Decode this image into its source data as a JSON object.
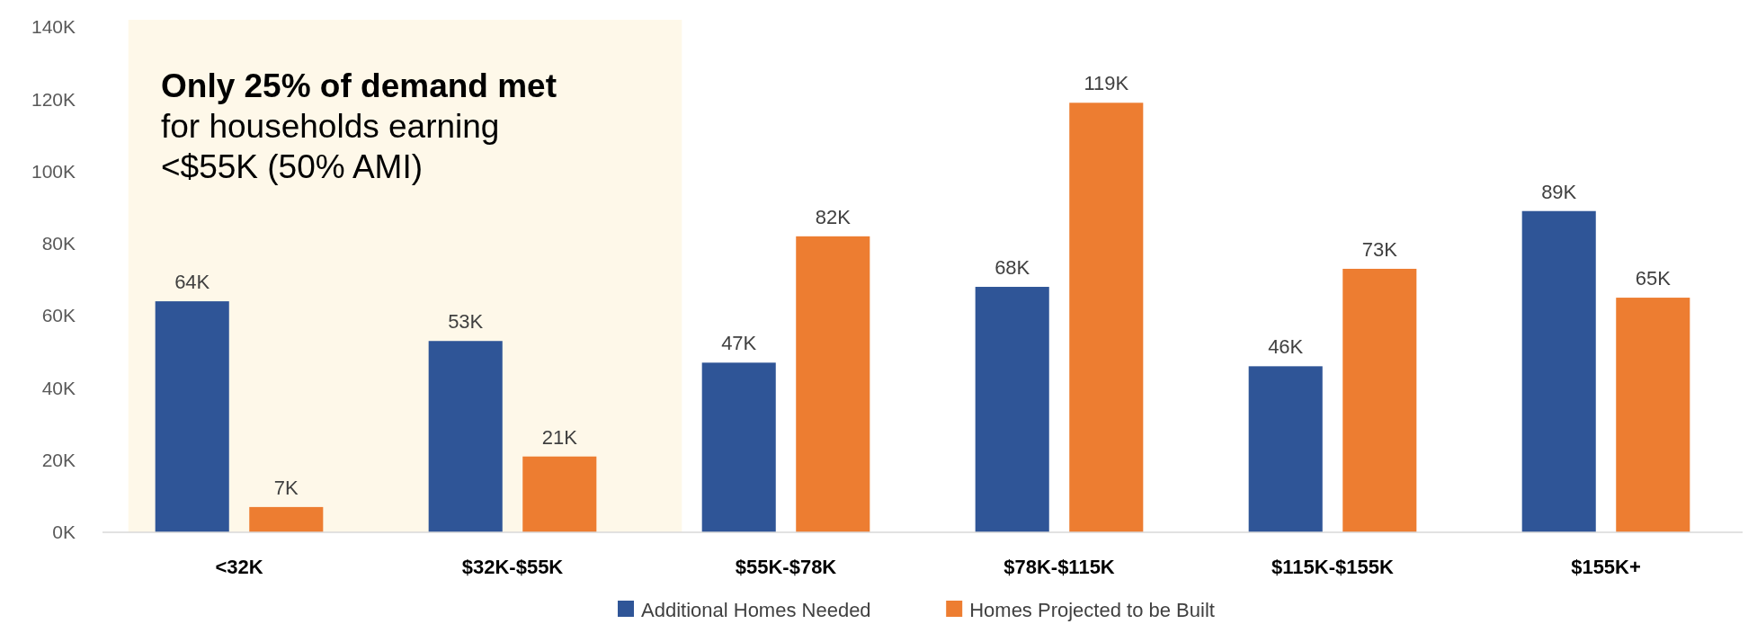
{
  "chart_data": {
    "type": "bar",
    "categories": [
      "<32K",
      "$32K-$55K",
      "$55K-$78K",
      "$78K-$115K",
      "$115K-$155K",
      "$155K+"
    ],
    "series": [
      {
        "name": "Additional Homes Needed",
        "color": "#2f5597",
        "values": [
          64,
          53,
          47,
          68,
          46,
          89
        ],
        "value_labels": [
          "64K",
          "53K",
          "47K",
          "68K",
          "46K",
          "89K"
        ]
      },
      {
        "name": "Homes Projected to be Built",
        "color": "#ed7d31",
        "values": [
          7,
          21,
          82,
          119,
          73,
          65
        ],
        "value_labels": [
          "7K",
          "21K",
          "82K",
          "119K",
          "73K",
          "65K"
        ]
      }
    ],
    "ylim": [
      0,
      140
    ],
    "yticks": [
      {
        "value": 0,
        "label": "0K"
      },
      {
        "value": 20,
        "label": "20K"
      },
      {
        "value": 40,
        "label": "40K"
      },
      {
        "value": 60,
        "label": "60K"
      },
      {
        "value": 80,
        "label": "80K"
      },
      {
        "value": 100,
        "label": "100K"
      },
      {
        "value": 120,
        "label": "120K"
      },
      {
        "value": 140,
        "label": "140K"
      }
    ],
    "annotations": [
      "Only 25% of demand met",
      "for households earning <$55K (50% AMI)"
    ],
    "grid": false,
    "legend": "bottom"
  }
}
